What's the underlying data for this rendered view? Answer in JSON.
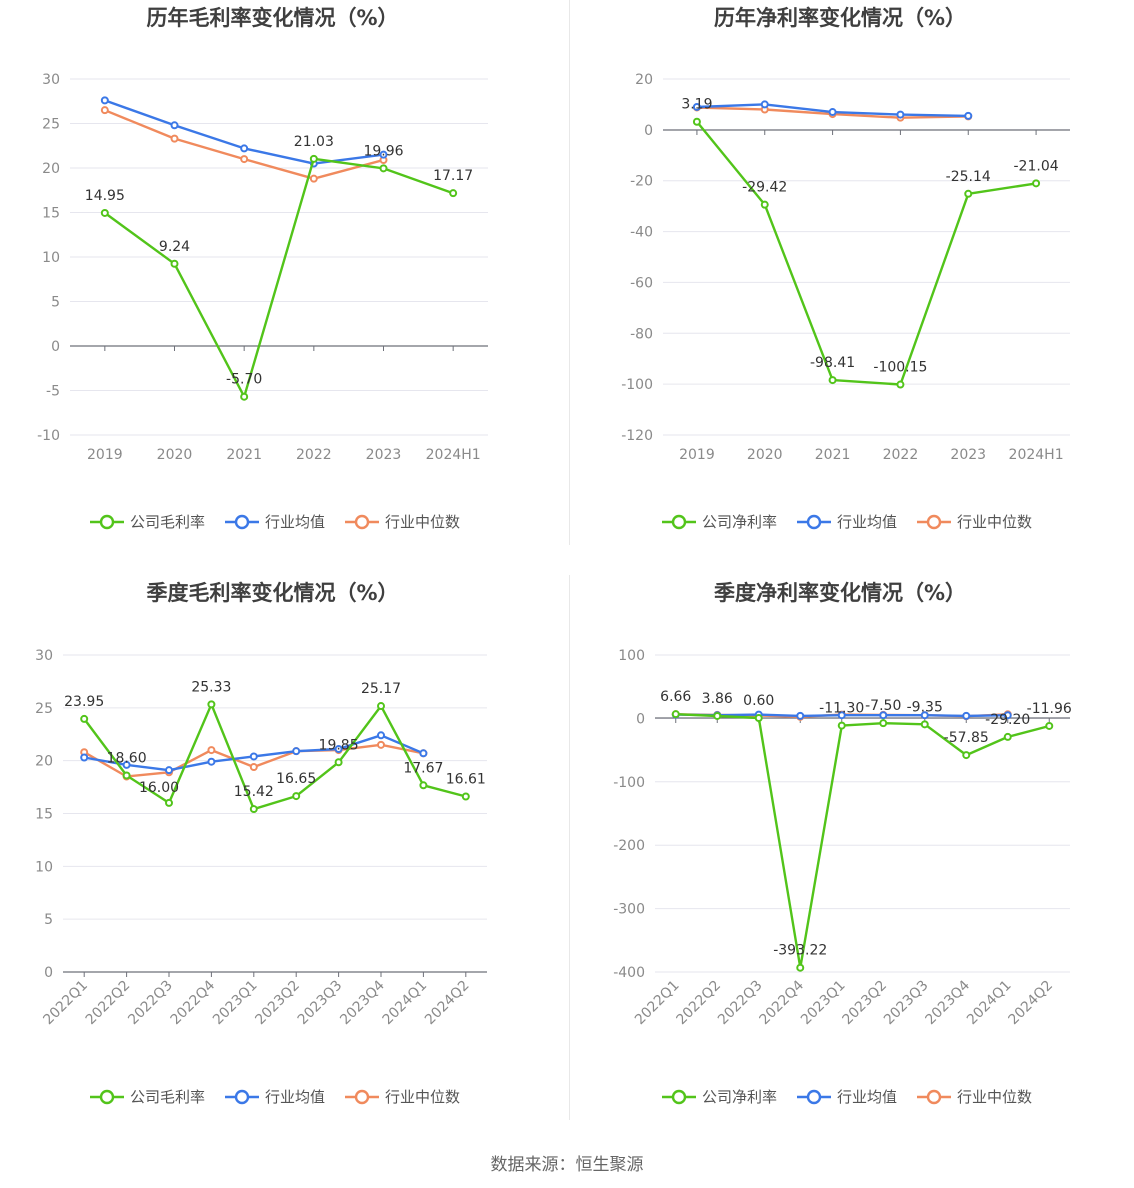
{
  "footer": "数据来源：恒生聚源",
  "legend": {
    "gross": [
      "公司毛利率",
      "行业均值",
      "行业中位数"
    ],
    "net": [
      "公司净利率",
      "行业均值",
      "行业中位数"
    ]
  },
  "colors": {
    "company": "#52c41a",
    "mean": "#3b78e7",
    "median": "#f08a5d"
  },
  "chart_data": [
    {
      "type": "line",
      "title": "历年毛利率变化情况（%）",
      "categories": [
        "2019",
        "2020",
        "2021",
        "2022",
        "2023",
        "2024H1"
      ],
      "ylim": [
        -10,
        30
      ],
      "yticks": [
        30,
        25,
        20,
        15,
        10,
        5,
        0,
        -5,
        -10
      ],
      "legend_position": "bottom",
      "series": [
        {
          "name": "公司毛利率",
          "values": [
            14.95,
            9.24,
            -5.7,
            21.03,
            19.96,
            17.17
          ],
          "labels": [
            "14.95",
            "9.24",
            "-5.70",
            "21.03",
            "19.96",
            "17.17"
          ]
        },
        {
          "name": "行业均值",
          "values": [
            27.6,
            24.8,
            22.2,
            20.5,
            21.5,
            null
          ]
        },
        {
          "name": "行业中位数",
          "values": [
            26.5,
            23.3,
            21.0,
            18.8,
            20.9,
            null
          ]
        }
      ]
    },
    {
      "type": "line",
      "title": "历年净利率变化情况（%）",
      "categories": [
        "2019",
        "2020",
        "2021",
        "2022",
        "2023",
        "2024H1"
      ],
      "ylim": [
        -120,
        20
      ],
      "yticks": [
        20,
        0,
        -20,
        -40,
        -60,
        -80,
        -100,
        -120
      ],
      "legend_position": "bottom",
      "series": [
        {
          "name": "公司净利率",
          "values": [
            3.19,
            -29.42,
            -98.41,
            -100.15,
            -25.14,
            -21.04
          ],
          "labels": [
            "3.19",
            "-29.42",
            "-98.41",
            "-100.15",
            "-25.14",
            "-21.04"
          ]
        },
        {
          "name": "行业均值",
          "values": [
            9.0,
            10.0,
            7.0,
            6.0,
            5.5,
            null
          ]
        },
        {
          "name": "行业中位数",
          "values": [
            8.8,
            8.0,
            6.2,
            4.8,
            5.3,
            null
          ]
        }
      ]
    },
    {
      "type": "line",
      "title": "季度毛利率变化情况（%）",
      "categories": [
        "2022Q1",
        "2022Q2",
        "2022Q3",
        "2022Q4",
        "2023Q1",
        "2023Q2",
        "2023Q3",
        "2023Q4",
        "2024Q1",
        "2024Q2"
      ],
      "ylim": [
        0,
        30
      ],
      "yticks": [
        30,
        25,
        20,
        15,
        10,
        5,
        0
      ],
      "legend_position": "bottom",
      "series": [
        {
          "name": "公司毛利率",
          "values": [
            23.95,
            18.6,
            16.0,
            25.33,
            15.42,
            16.65,
            19.85,
            25.17,
            17.67,
            16.61
          ],
          "labels": [
            "23.95",
            "18.60",
            "16.00",
            "25.33",
            "15.42",
            "16.65",
            "19.85",
            "25.17",
            "17.67",
            "16.61"
          ]
        },
        {
          "name": "行业均值",
          "values": [
            20.3,
            19.6,
            19.1,
            19.9,
            20.4,
            20.9,
            21.1,
            22.4,
            20.7,
            null
          ]
        },
        {
          "name": "行业中位数",
          "values": [
            20.8,
            18.5,
            18.9,
            21.0,
            19.4,
            20.9,
            21.0,
            21.5,
            20.7,
            null
          ]
        }
      ]
    },
    {
      "type": "line",
      "title": "季度净利率变化情况（%）",
      "categories": [
        "2022Q1",
        "2022Q2",
        "2022Q3",
        "2022Q4",
        "2023Q1",
        "2023Q2",
        "2023Q3",
        "2023Q4",
        "2024Q1",
        "2024Q2"
      ],
      "ylim": [
        -400,
        100
      ],
      "yticks": [
        100,
        0,
        -100,
        -200,
        -300,
        -400
      ],
      "legend_position": "bottom",
      "series": [
        {
          "name": "公司净利率",
          "values": [
            6.66,
            3.86,
            0.6,
            -393.22,
            -11.3,
            -7.5,
            -9.35,
            -57.85,
            -29.2,
            -11.96
          ],
          "labels": [
            "6.66",
            "3.86",
            "0.60",
            "-393.22",
            "-11.30",
            "-7.50",
            "-9.35",
            "-57.85",
            "-29.20",
            "-11.96"
          ]
        },
        {
          "name": "行业均值",
          "values": [
            6.0,
            5.0,
            6.0,
            4.0,
            5.0,
            5.0,
            5.0,
            4.0,
            5.0,
            null
          ]
        },
        {
          "name": "行业中位数",
          "values": [
            6.5,
            5.5,
            4.5,
            2.5,
            6.0,
            5.5,
            5.0,
            3.5,
            6.5,
            null
          ]
        }
      ]
    }
  ]
}
